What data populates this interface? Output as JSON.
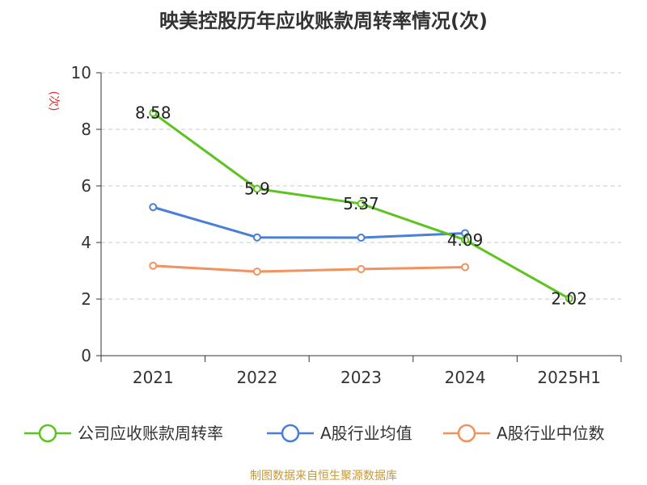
{
  "chart_data": {
    "type": "line",
    "title": "映美控股历年应收账款周转率情况(次)",
    "ylabel": "(次)",
    "xlabel": "",
    "categories": [
      "2021",
      "2022",
      "2023",
      "2024",
      "2025H1"
    ],
    "ylim": [
      0,
      10
    ],
    "yticks": [
      0,
      2,
      4,
      6,
      8,
      10
    ],
    "grid": true,
    "legend_position": "bottom",
    "series": [
      {
        "name": "公司应收账款周转率",
        "color": "#5cc41f",
        "values": [
          8.58,
          5.9,
          5.37,
          4.09,
          2.02
        ],
        "labels": [
          "8.58",
          "5.9",
          "5.37",
          "4.09",
          "2.02"
        ]
      },
      {
        "name": "A股行业均值",
        "color": "#4a7fd8",
        "values": [
          5.25,
          4.18,
          4.17,
          4.33,
          null
        ],
        "labels": []
      },
      {
        "name": "A股行业中位数",
        "color": "#f2925f",
        "values": [
          3.18,
          2.97,
          3.06,
          3.13,
          null
        ],
        "labels": []
      }
    ]
  },
  "footer": "制图数据来自恒生聚源数据库"
}
